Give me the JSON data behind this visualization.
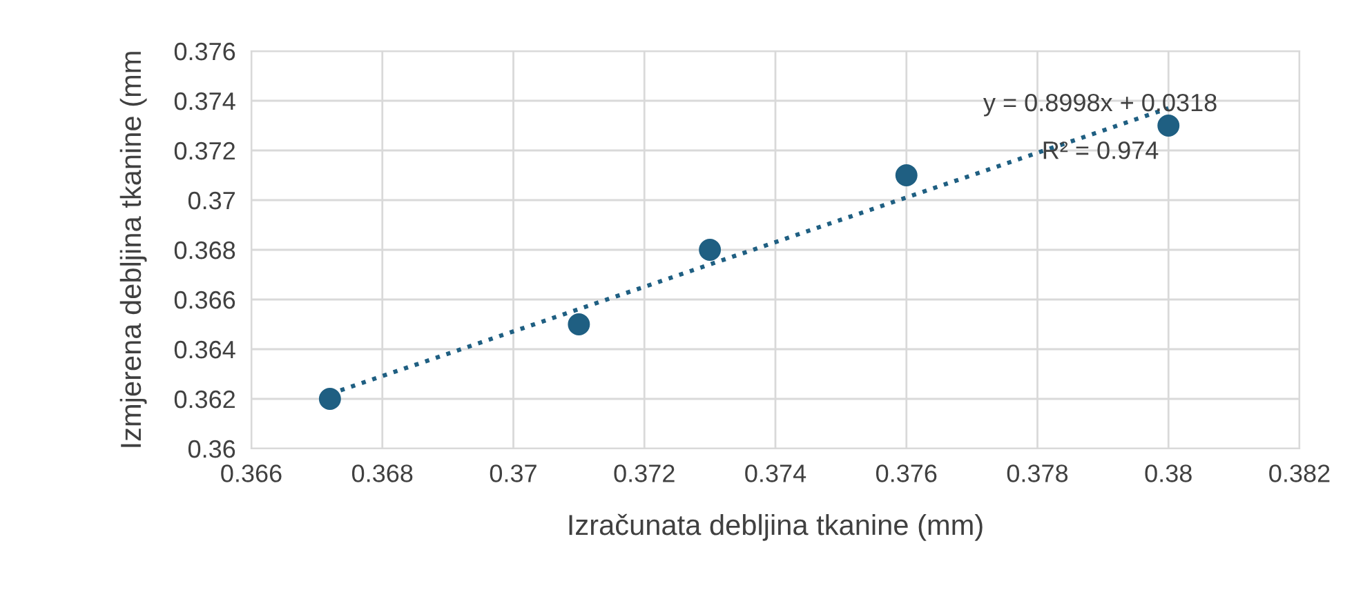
{
  "chart_data": {
    "type": "scatter",
    "xlabel": "Izračunata debljina tkanine (mm)",
    "ylabel": "Izmjerena debljina tkanine (mm",
    "series": [
      {
        "color": "#1f5f82",
        "marker": "circle",
        "x": [
          0.3672,
          0.371,
          0.373,
          0.376,
          0.38
        ],
        "values": [
          0.362,
          0.365,
          0.368,
          0.371,
          0.373
        ]
      },
      {
        "type": "line",
        "color": "#1f5f82",
        "line_style": "dotted",
        "marker": "none",
        "x": [
          0.3672,
          0.38
        ],
        "values": [
          0.3622,
          0.3737
        ]
      }
    ],
    "annotations": [
      "y = 0.8998x + 0.0318",
      "R² = 0.974"
    ],
    "xlim": [
      0.366,
      0.382
    ],
    "xticks": [
      0.366,
      0.368,
      0.37,
      0.372,
      0.374,
      0.376,
      0.378,
      0.38,
      0.382
    ],
    "ylim": [
      0.36,
      0.376
    ],
    "yticks": [
      0.36,
      0.362,
      0.364,
      0.366,
      0.368,
      0.37,
      0.372,
      0.374,
      0.376
    ],
    "grid": true,
    "legend": false
  }
}
